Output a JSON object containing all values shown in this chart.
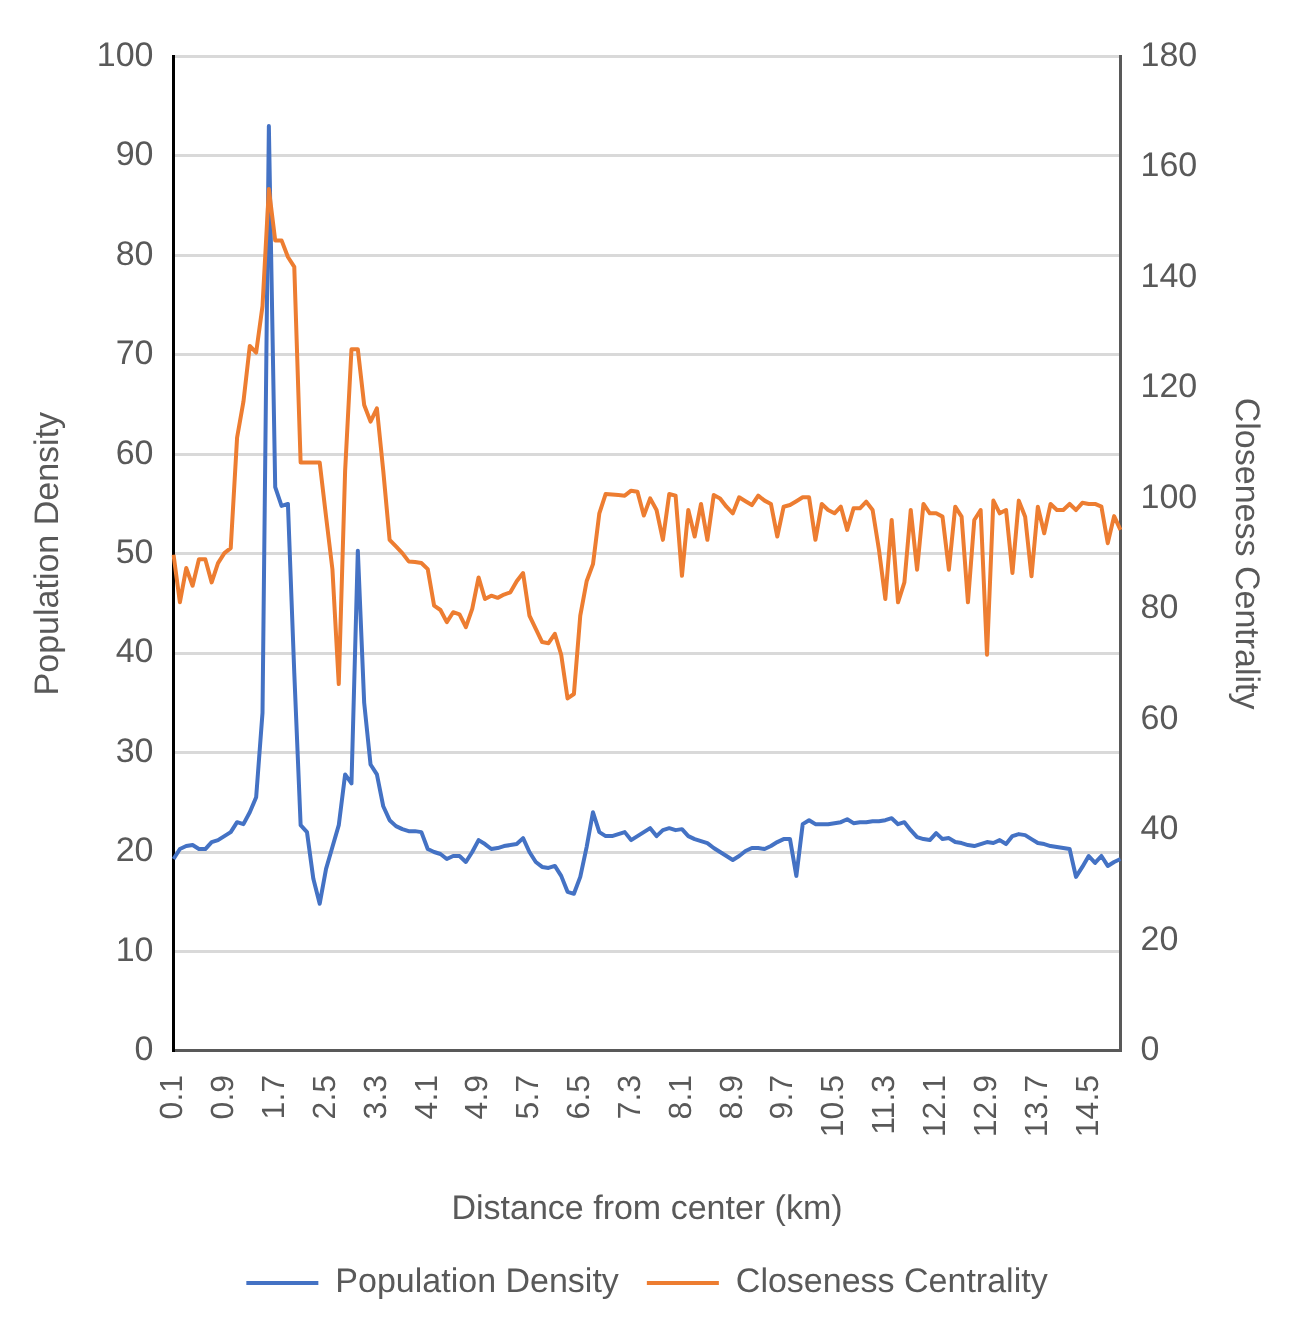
{
  "chart_data": {
    "type": "line",
    "xlabel": "Distance from center (km)",
    "ylabel": "Population Density",
    "y2label": "Closeness Centrality",
    "categories": [
      "0.1",
      null,
      null,
      null,
      null,
      null,
      null,
      null,
      "0.9",
      null,
      null,
      null,
      null,
      null,
      null,
      null,
      "1.7",
      null,
      null,
      null,
      null,
      null,
      null,
      null,
      "2.5",
      null,
      null,
      null,
      null,
      null,
      null,
      null,
      "3.3",
      null,
      null,
      null,
      null,
      null,
      null,
      null,
      "4.1",
      null,
      null,
      null,
      null,
      null,
      null,
      null,
      "4.9",
      null,
      null,
      null,
      null,
      null,
      null,
      null,
      "5.7",
      null,
      null,
      null,
      null,
      null,
      null,
      null,
      "6.5",
      null,
      null,
      null,
      null,
      null,
      null,
      null,
      "7.3",
      null,
      null,
      null,
      null,
      null,
      null,
      null,
      "8.1",
      null,
      null,
      null,
      null,
      null,
      null,
      null,
      "8.9",
      null,
      null,
      null,
      null,
      null,
      null,
      null,
      "9.7",
      null,
      null,
      null,
      null,
      null,
      null,
      null,
      "10.5",
      null,
      null,
      null,
      null,
      null,
      null,
      null,
      "11.3",
      null,
      null,
      null,
      null,
      null,
      null,
      null,
      "12.1",
      null,
      null,
      null,
      null,
      null,
      null,
      null,
      "12.9",
      null,
      null,
      null,
      null,
      null,
      null,
      null,
      "13.7",
      null,
      null,
      null,
      null,
      null,
      null,
      null,
      "14.5",
      null,
      null,
      null,
      null,
      null
    ],
    "series": [
      {
        "name": "Population Density",
        "color": "#4472c4",
        "values": [
          19.3,
          20.3,
          20.6,
          20.7,
          20.3,
          20.3,
          21,
          21.2,
          21.6,
          22,
          23,
          22.8,
          24,
          25.5,
          34,
          93,
          56.7,
          54.8,
          55,
          38,
          22.7,
          22,
          17.3,
          14.8,
          18.3,
          20.5,
          22.7,
          27.8,
          26.9,
          50.3,
          35,
          28.8,
          27.8,
          24.6,
          23.2,
          22.6,
          22.3,
          22.1,
          22.1,
          22,
          20.3,
          20,
          19.8,
          19.3,
          19.6,
          19.6,
          19,
          20,
          21.2,
          20.8,
          20.3,
          20.4,
          20.6,
          20.7,
          20.8,
          21.4,
          20,
          19,
          18.5,
          18.4,
          18.6,
          17.6,
          16,
          15.8,
          17.5,
          20.5,
          24,
          22,
          21.6,
          21.6,
          21.8,
          22,
          21.2,
          21.6,
          22,
          22.4,
          21.6,
          22.2,
          22.4,
          22.2,
          22.3,
          21.6,
          21.3,
          21.1,
          20.9,
          20.4,
          20,
          19.6,
          19.2,
          19.6,
          20.1,
          20.4,
          20.4,
          20.3,
          20.6,
          21,
          21.3,
          21.3,
          17.6,
          22.8,
          23.2,
          22.8,
          22.8,
          22.8,
          22.9,
          23,
          23.3,
          22.9,
          23,
          23,
          23.1,
          23.1,
          23.2,
          23.4,
          22.8,
          23,
          22.2,
          21.5,
          21.3,
          21.2,
          21.9,
          21.3,
          21.4,
          21,
          20.9,
          20.7,
          20.6,
          20.8,
          21,
          20.9,
          21.2,
          20.8,
          21.6,
          21.8,
          21.7,
          21.3,
          20.9,
          20.8,
          20.6,
          20.5,
          20.4,
          20.3,
          17.5,
          18.5,
          19.6,
          18.9,
          19.6,
          18.6,
          19,
          19.3
        ]
      },
      {
        "name": "Closeness Centrality",
        "color": "#ed7d31",
        "axis": "y2",
        "values": [
          89.8,
          81.2,
          87.4,
          84.2,
          89,
          89,
          84.8,
          88.3,
          90.1,
          91,
          111,
          117.5,
          127.6,
          126.4,
          134.8,
          156,
          146.7,
          146.7,
          143.7,
          141.9,
          106.5,
          106.5,
          106.5,
          106.5,
          96.7,
          87.2,
          66.4,
          105,
          127,
          127,
          116.9,
          113.9,
          116.3,
          105,
          92.5,
          91.3,
          90.1,
          88.6,
          88.5,
          88.3,
          87.2,
          80.6,
          79.8,
          77.6,
          79.4,
          79,
          76.7,
          80,
          85.7,
          81.8,
          82.4,
          82,
          82.6,
          83,
          85,
          86.5,
          78.8,
          76.4,
          74,
          73.8,
          75.5,
          71.7,
          63.8,
          64.6,
          78.8,
          85,
          88.1,
          97.3,
          100.8,
          100.7,
          100.6,
          100.5,
          101.4,
          101.2,
          96.9,
          100,
          97.9,
          92.5,
          100.8,
          100.5,
          86,
          97.9,
          93.1,
          99,
          92.5,
          100.6,
          100,
          98.5,
          97.3,
          100.2,
          99.5,
          98.8,
          100.5,
          99.6,
          99,
          93.1,
          98.5,
          98.8,
          99.5,
          100.2,
          100.2,
          92.5,
          99,
          97.9,
          97.3,
          98.5,
          94.3,
          98.2,
          98.2,
          99.4,
          97.9,
          90.7,
          81.8,
          96.1,
          81.2,
          84.8,
          97.9,
          87.1,
          99,
          97.3,
          97.3,
          96.7,
          87.1,
          98.5,
          96.7,
          81.2,
          96.1,
          97.9,
          71.7,
          99.6,
          97.3,
          97.9,
          86.5,
          99.6,
          96.7,
          85.9,
          98.5,
          93.7,
          99,
          97.9,
          97.9,
          99,
          97.9,
          99.2,
          99,
          99,
          98.5,
          91.9,
          96.8,
          94.3
        ]
      }
    ],
    "ylim": [
      0,
      100
    ],
    "yticks": [
      0,
      10,
      20,
      30,
      40,
      50,
      60,
      70,
      80,
      90,
      100
    ],
    "y2lim": [
      0,
      180
    ],
    "y2ticks": [
      0,
      20,
      40,
      60,
      80,
      100,
      120,
      140,
      160,
      180
    ],
    "grid": "y",
    "legend": "bottom"
  }
}
